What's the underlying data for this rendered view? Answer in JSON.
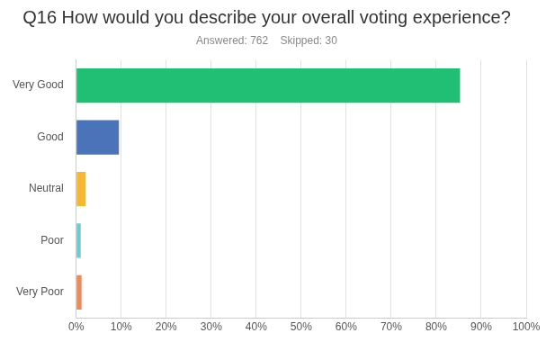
{
  "chart_data": {
    "type": "bar",
    "orientation": "horizontal",
    "title": "Q16 How would you describe your overall voting experience?",
    "subtitle": "Answered: 762    Skipped: 30",
    "categories": [
      "Very Good",
      "Good",
      "Neutral",
      "Poor",
      "Very Poor"
    ],
    "values": [
      85.3,
      9.5,
      2.1,
      1.0,
      1.2
    ],
    "colors": [
      "#21bf73",
      "#4a73b9",
      "#f6b732",
      "#6ccbd1",
      "#f0895a"
    ],
    "xlim": [
      0,
      100
    ],
    "xticks": [
      {
        "value": 0,
        "label": "0%"
      },
      {
        "value": 10,
        "label": "10%"
      },
      {
        "value": 20,
        "label": "20%"
      },
      {
        "value": 30,
        "label": "30%"
      },
      {
        "value": 40,
        "label": "40%"
      },
      {
        "value": 50,
        "label": "50%"
      },
      {
        "value": 60,
        "label": "60%"
      },
      {
        "value": 70,
        "label": "70%"
      },
      {
        "value": 80,
        "label": "80%"
      },
      {
        "value": 90,
        "label": "90%"
      },
      {
        "value": 100,
        "label": "100%"
      }
    ],
    "grid": true
  }
}
